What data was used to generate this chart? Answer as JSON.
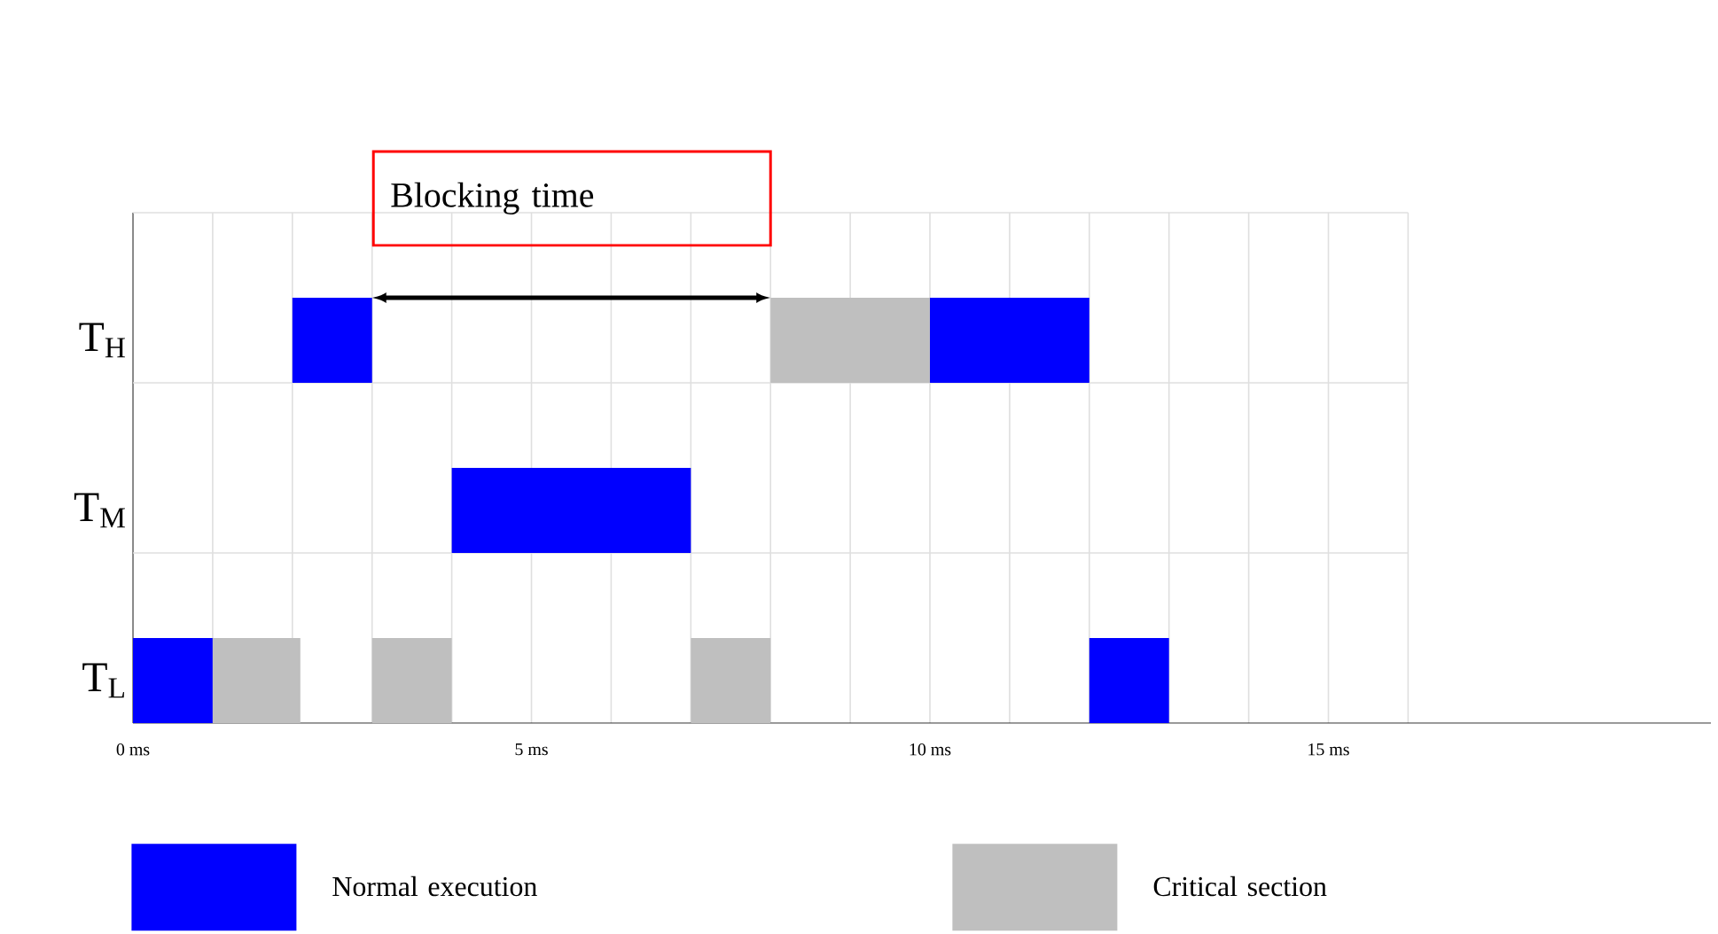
{
  "chart_data": {
    "type": "bar",
    "orientation": "horizontal",
    "categories": [
      "T$_{H}$",
      "T$_{M}$",
      "T$_{L}$"
    ],
    "series": [
      {
        "name": "Normal execution",
        "color": "#0000ff",
        "base": [
          2,
          4,
          0
        ],
        "values": [
          1,
          3,
          1
        ]
      },
      {
        "color": "#0000ff",
        "base": [
          10,
          null,
          12
        ],
        "values": [
          2,
          null,
          1
        ]
      },
      {
        "name": "Critical section",
        "color": "#bfbfbf",
        "base": [
          8,
          null,
          1
        ],
        "values": [
          2,
          null,
          1.1
        ]
      },
      {
        "color": "#bfbfbf",
        "base": [
          null,
          null,
          3
        ],
        "values": [
          null,
          null,
          1
        ]
      },
      {
        "color": "#bfbfbf",
        "base": [
          null,
          null,
          7
        ],
        "values": [
          null,
          null,
          1
        ]
      }
    ],
    "xlim": [
      0,
      19.8
    ],
    "xticks": [
      {
        "value": 0,
        "label": "0 ms"
      },
      {
        "value": 1,
        "label": null
      },
      {
        "value": 2,
        "label": null
      },
      {
        "value": 3,
        "label": null
      },
      {
        "value": 4,
        "label": null
      },
      {
        "value": 5,
        "label": "5 ms"
      },
      {
        "value": 6,
        "label": null
      },
      {
        "value": 7,
        "label": null
      },
      {
        "value": 8,
        "label": null
      },
      {
        "value": 9,
        "label": null
      },
      {
        "value": 10,
        "label": "10 ms"
      },
      {
        "value": 11,
        "label": null
      },
      {
        "value": 12,
        "label": null
      },
      {
        "value": 13,
        "label": null
      },
      {
        "value": 14,
        "label": null
      },
      {
        "value": 15,
        "label": "15 ms"
      },
      {
        "value": 16,
        "label": null
      }
    ],
    "grid": true,
    "legend": "bottom",
    "annotations": [
      "Blocking time"
    ]
  }
}
